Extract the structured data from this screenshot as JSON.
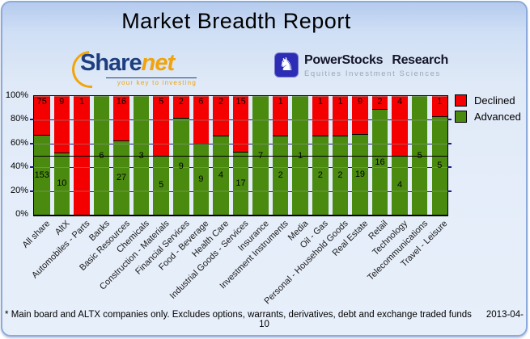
{
  "title": "Market Breadth Report",
  "logos": {
    "sharenet": {
      "text_share": "Share",
      "text_net": "net",
      "tagline": "your key to investing"
    },
    "powerstocks": {
      "name": "PowerStocks Research",
      "tagline": "Equities Investment Sciences",
      "icon": "knight-chess-icon",
      "icon_glyph": "♞",
      "icon_bg": "#2c2cb4"
    }
  },
  "legend": [
    {
      "label": "Declined",
      "color": "#f40000"
    },
    {
      "label": "Advanced",
      "color": "#4a8b0f"
    }
  ],
  "chart_data": {
    "type": "bar",
    "stacked": true,
    "stack_mode": "percent",
    "title": "Market Breadth Report",
    "categories": [
      "All share",
      "AltX",
      "Automobiles - Parts",
      "Banks",
      "Basic Resources",
      "Chemicals",
      "Construction - Materials",
      "Financial Services",
      "Food - Beverage",
      "Health Care",
      "Industrial Goods - Services",
      "Insurance",
      "Investment Instruments",
      "Media",
      "Oil - Gas",
      "Personal - Household Goods",
      "Real Estate",
      "Retail",
      "Technology",
      "Telecommunications",
      "Travel - Leisure"
    ],
    "series": [
      {
        "name": "Declined",
        "color": "#f40000",
        "values": [
          75,
          9,
          1,
          0,
          16,
          0,
          5,
          2,
          6,
          2,
          15,
          0,
          1,
          0,
          1,
          1,
          9,
          2,
          4,
          0,
          1
        ]
      },
      {
        "name": "Advanced",
        "color": "#4a8b0f",
        "values": [
          153,
          10,
          0,
          6,
          27,
          3,
          5,
          9,
          9,
          4,
          17,
          7,
          2,
          1,
          2,
          2,
          19,
          16,
          4,
          5,
          5
        ]
      }
    ],
    "y_ticks": [
      "0%",
      "20%",
      "40%",
      "60%",
      "80%",
      "100%"
    ],
    "ylim": [
      0,
      100
    ],
    "reference_line_pct": 50,
    "grid": true,
    "gridline_color": "#1b1b8a",
    "legend_position": "top-right"
  },
  "footer": {
    "note": "* Main board and ALTX companies only. Excludes options, warrants, derivatives, debt and exchange traded funds",
    "date": "2013-04-10"
  }
}
